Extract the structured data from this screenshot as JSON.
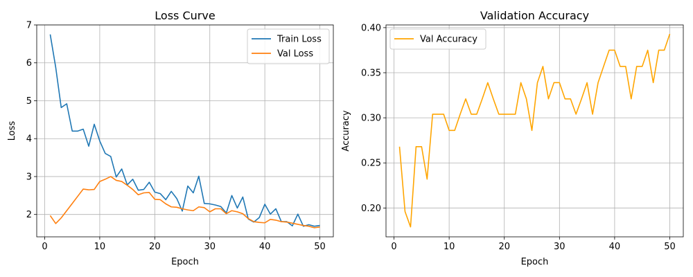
{
  "chart_data": [
    {
      "type": "line",
      "title": "Loss Curve",
      "xlabel": "Epoch",
      "ylabel": "Loss",
      "xlim": [
        -1.45,
        52.45
      ],
      "ylim": [
        1.41,
        7.0
      ],
      "grid": true,
      "legend_position": "top-right",
      "xticks": [
        0,
        10,
        20,
        30,
        40,
        50
      ],
      "yticks": [
        2,
        3,
        4,
        5,
        6,
        7
      ],
      "xtick_labels": [
        "0",
        "10",
        "20",
        "30",
        "40",
        "50"
      ],
      "ytick_labels": [
        "2",
        "3",
        "4",
        "5",
        "6",
        "7"
      ],
      "x": [
        1,
        2,
        3,
        4,
        5,
        6,
        7,
        8,
        9,
        10,
        11,
        12,
        13,
        14,
        15,
        16,
        17,
        18,
        19,
        20,
        21,
        22,
        23,
        24,
        25,
        26,
        27,
        28,
        29,
        30,
        31,
        32,
        33,
        34,
        35,
        36,
        37,
        38,
        39,
        40,
        41,
        42,
        43,
        44,
        45,
        46,
        47,
        48,
        49,
        50
      ],
      "series": [
        {
          "name": "Train Loss",
          "color": "#1f77b4",
          "values": [
            6.75,
            5.88,
            4.82,
            4.92,
            4.2,
            4.2,
            4.25,
            3.8,
            4.38,
            3.94,
            3.61,
            3.53,
            2.99,
            3.2,
            2.78,
            2.93,
            2.64,
            2.66,
            2.85,
            2.59,
            2.55,
            2.39,
            2.61,
            2.42,
            2.09,
            2.75,
            2.57,
            3.01,
            2.29,
            2.28,
            2.25,
            2.21,
            2.04,
            2.5,
            2.17,
            2.46,
            1.88,
            1.8,
            1.92,
            2.27,
            2.01,
            2.15,
            1.81,
            1.81,
            1.7,
            2.01,
            1.69,
            1.73,
            1.69,
            1.71
          ]
        },
        {
          "name": "Val Loss",
          "color": "#ff7f0e",
          "values": [
            1.97,
            1.76,
            1.91,
            2.1,
            2.29,
            2.48,
            2.67,
            2.65,
            2.66,
            2.87,
            2.93,
            3.0,
            2.9,
            2.87,
            2.77,
            2.66,
            2.52,
            2.57,
            2.58,
            2.4,
            2.39,
            2.28,
            2.2,
            2.19,
            2.15,
            2.12,
            2.1,
            2.2,
            2.18,
            2.07,
            2.15,
            2.15,
            2.02,
            2.1,
            2.07,
            2.02,
            1.89,
            1.81,
            1.79,
            1.78,
            1.87,
            1.85,
            1.81,
            1.8,
            1.77,
            1.74,
            1.71,
            1.69,
            1.65,
            1.67
          ]
        }
      ]
    },
    {
      "type": "line",
      "title": "Validation Accuracy",
      "xlabel": "Epoch",
      "ylabel": "Accuracy",
      "xlim": [
        -1.45,
        52.45
      ],
      "ylim": [
        0.168,
        0.403
      ],
      "grid": true,
      "legend_position": "top-left",
      "xticks": [
        0,
        10,
        20,
        30,
        40,
        50
      ],
      "yticks": [
        0.2,
        0.25,
        0.3,
        0.35,
        0.4
      ],
      "xtick_labels": [
        "0",
        "10",
        "20",
        "30",
        "40",
        "50"
      ],
      "ytick_labels": [
        "0.20",
        "0.25",
        "0.30",
        "0.35",
        "0.40"
      ],
      "x": [
        1,
        2,
        3,
        4,
        5,
        6,
        7,
        8,
        9,
        10,
        11,
        12,
        13,
        14,
        15,
        16,
        17,
        18,
        19,
        20,
        21,
        22,
        23,
        24,
        25,
        26,
        27,
        28,
        29,
        30,
        31,
        32,
        33,
        34,
        35,
        36,
        37,
        38,
        39,
        40,
        41,
        42,
        43,
        44,
        45,
        46,
        47,
        48,
        49,
        50
      ],
      "series": [
        {
          "name": "Val Accuracy",
          "color": "#ffa500",
          "values": [
            0.268,
            0.196,
            0.179,
            0.268,
            0.268,
            0.232,
            0.304,
            0.304,
            0.304,
            0.286,
            0.286,
            0.304,
            0.321,
            0.304,
            0.304,
            0.321,
            0.339,
            0.321,
            0.304,
            0.304,
            0.304,
            0.304,
            0.339,
            0.321,
            0.286,
            0.339,
            0.357,
            0.321,
            0.339,
            0.339,
            0.321,
            0.321,
            0.304,
            0.321,
            0.339,
            0.304,
            0.339,
            0.357,
            0.375,
            0.375,
            0.357,
            0.357,
            0.321,
            0.357,
            0.357,
            0.375,
            0.339,
            0.375,
            0.375,
            0.393
          ]
        }
      ]
    }
  ]
}
